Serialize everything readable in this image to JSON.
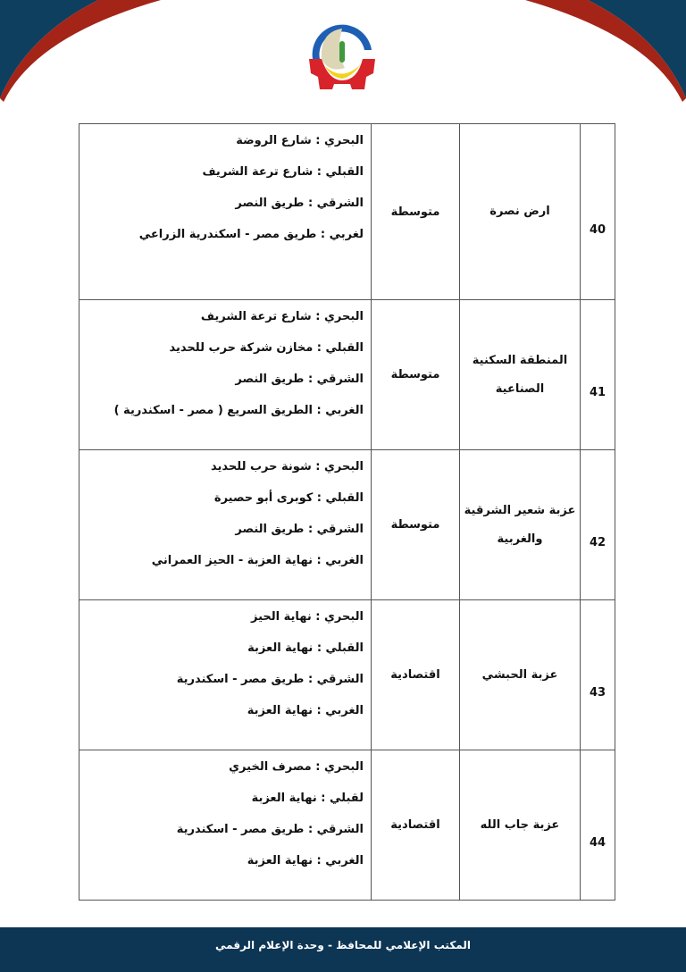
{
  "colors": {
    "header_blue": "#0e3f5e",
    "header_red": "#a42418",
    "footer_bg": "#0d3554"
  },
  "logo": {
    "name": "governorate-logo"
  },
  "table": {
    "rows": [
      {
        "number": "40",
        "name": "ارض نصرة",
        "type": "متوسطة",
        "bounds": [
          "البحري : شارع الروضة",
          "القبلي : شارع ترعة الشريف",
          "الشرقي : طريق النصر",
          "لغربي : طريق مصر - اسكندرية الزراعي"
        ]
      },
      {
        "number": "41",
        "name": "المنطقة السكنية الصناعية",
        "type": "متوسطة",
        "bounds": [
          "البحري : شارع ترعة الشريف",
          "القبلي : مخازن شركة حرب للحديد",
          "الشرقي : طريق النصر",
          "الغربي : الطريق السريع ( مصر - اسكندرية )"
        ]
      },
      {
        "number": "42",
        "name": "عزبة شعير الشرقية والغربية",
        "type": "متوسطة",
        "bounds": [
          "البحري : شونة حرب للحديد",
          "القبلي : كوبرى أبو حصيرة",
          "الشرقي : طريق النصر",
          "الغربي : نهاية العزبة - الحيز العمراني"
        ]
      },
      {
        "number": "43",
        "name": "عزبة الحبشي",
        "type": "اقتصادية",
        "bounds": [
          "البحري : نهاية الحيز",
          "القبلي : نهاية العزبة",
          "الشرقي : طريق مصر - اسكندرية",
          "الغربي : نهاية العزبة"
        ]
      },
      {
        "number": "44",
        "name": "عزبة جاب الله",
        "type": "اقتصادية",
        "bounds": [
          "البحري : مصرف الخيري",
          "لقبلي : نهاية العزبة",
          "الشرقي : طريق مصر - اسكندرية",
          "الغربي : نهاية العزبة"
        ]
      }
    ]
  },
  "footer": {
    "text": "المكتب الإعلامي للمحافظ - وحدة الإعلام الرقمي"
  }
}
